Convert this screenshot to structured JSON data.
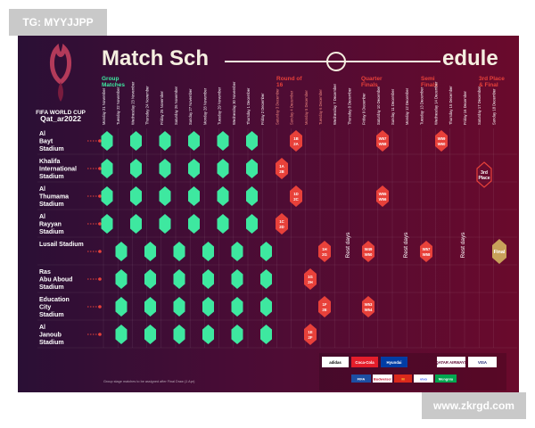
{
  "watermarks": {
    "top": "TG: MYYJJPP",
    "bottom": "www.zkrgd.com"
  },
  "colors": {
    "group_stage": "#3ee8a0",
    "knockout": "#e8413a",
    "final": "#c8a15a",
    "title": "#f5efe0"
  },
  "title_left": "Match Sch",
  "title_right": "edule",
  "logo": {
    "line1": "FIFA WORLD CUP",
    "line2": "Qat_ar2022"
  },
  "stages": [
    {
      "label": "Group Matches"
    },
    {
      "label": "Round of 16"
    },
    {
      "label": "Quarter Finals"
    },
    {
      "label": "Semi Finals"
    },
    {
      "label": "3rd Place & Final"
    }
  ],
  "stadiums": [
    "Al Bayt Stadium",
    "Khalifa International Stadium",
    "Al Thumama Stadium",
    "Al Rayyan Stadium",
    "Lusail Stadium",
    "Ras Abu Aboud Stadium",
    "Education City Stadium",
    "Al Janoub Stadium"
  ],
  "dates": [
    "Monday 21 November",
    "Tuesday 22 November",
    "Wednesday 23 November",
    "Thursday 24 November",
    "Friday 25 November",
    "Saturday 26 November",
    "Sunday 27 November",
    "Monday 28 November",
    "Tuesday 29 November",
    "Wednesday 30 November",
    "Thursday 1 December",
    "Friday 2 December",
    "Saturday 3 December",
    "Sunday 4 December",
    "Monday 5 December",
    "Tuesday 6 December",
    "Wednesday 7 December",
    "Thursday 8 December",
    "Friday 9 December",
    "Saturday 10 December",
    "Sunday 11 December",
    "Monday 12 December",
    "Tuesday 13 December",
    "Wednesday 14 December",
    "Thursday 15 December",
    "Friday 16 December",
    "Saturday 17 December",
    "Sunday 18 December"
  ],
  "rest_label": "Rest days",
  "knockout_matches": [
    {
      "stadium": 0,
      "line1": "1B",
      "line2": "2A"
    },
    {
      "stadium": 1,
      "line1": "1A",
      "line2": "2B"
    },
    {
      "stadium": 2,
      "line1": "1D",
      "line2": "2C"
    },
    {
      "stadium": 3,
      "line1": "1C",
      "line2": "2D"
    },
    {
      "stadium": 4,
      "line1": "1H",
      "line2": "2G"
    },
    {
      "stadium": 5,
      "line1": "1G",
      "line2": "2H"
    },
    {
      "stadium": 6,
      "line1": "1F",
      "line2": "2E"
    },
    {
      "stadium": 7,
      "line1": "1E",
      "line2": "2F"
    },
    {
      "stadium": 0,
      "line1": "W57",
      "line2": "W58"
    },
    {
      "stadium": 2,
      "line1": "W55",
      "line2": "W56"
    },
    {
      "stadium": 4,
      "line1": "W49",
      "line2": "W50"
    },
    {
      "stadium": 6,
      "line1": "W53",
      "line2": "W54"
    },
    {
      "stadium": 0,
      "line1": "W59",
      "line2": "W60"
    },
    {
      "stadium": 4,
      "line1": "W57",
      "line2": "W58"
    }
  ],
  "third_place": {
    "label": "3rd Place"
  },
  "final": {
    "label": "Final"
  },
  "footnote": "Group stage matches to be assigned after Final Draw (1 Apr)",
  "sponsors_row1": [
    "adidas",
    "Coca-Cola",
    "Hyundai",
    "QATAR AIRWAYS",
    "VISA"
  ],
  "sponsors_row2": [
    "FIFA",
    "Budweiser",
    "M",
    "vivo",
    "Mengniu"
  ]
}
